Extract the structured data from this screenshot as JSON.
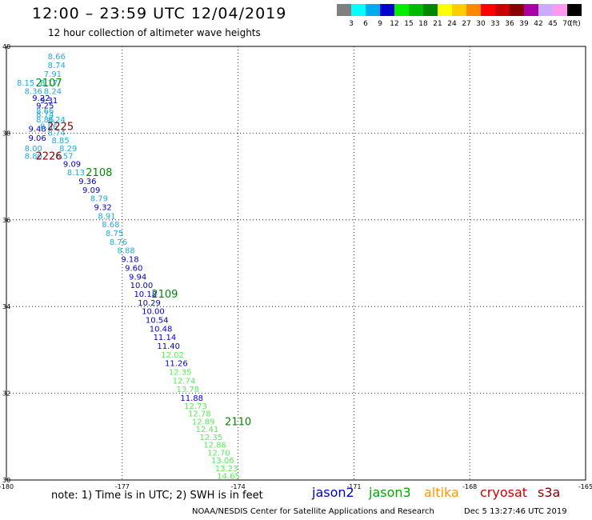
{
  "header": {
    "title": "12:00 – 23:59 UTC 12/04/2019",
    "subtitle": "12 hour collection of altimeter wave heights"
  },
  "colorbar": {
    "unit": "(ft)",
    "ticks": [
      "3",
      "6",
      "9",
      "12",
      "15",
      "18",
      "21",
      "24",
      "27",
      "30",
      "33",
      "36",
      "39",
      "42",
      "45",
      "70"
    ],
    "colors": [
      "#808080",
      "#00ffff",
      "#00aaee",
      "#0000cc",
      "#00ee00",
      "#00bb00",
      "#008800",
      "#ffff00",
      "#ffcc00",
      "#ff8800",
      "#ff0000",
      "#cc0000",
      "#880000",
      "#aa00aa",
      "#ccaaff",
      "#ff99ee",
      "#000000"
    ]
  },
  "footer": {
    "note": "note:  1) Time is in UTC;  2) SWH is in feet",
    "satellites": [
      {
        "name": "jason2",
        "color": "#0000cc"
      },
      {
        "name": "jason3",
        "color": "#00aa00"
      },
      {
        "name": "altika",
        "color": "#ff9900"
      },
      {
        "name": "cryosat",
        "color": "#cc0000"
      },
      {
        "name": "s3a",
        "color": "#880000"
      }
    ],
    "credit": "NOAA/NESDIS Center for Satellite Applications and Research",
    "timestamp": "Dec  5 13:27:46 UTC 2019"
  },
  "chart_data": {
    "type": "scatter",
    "xlim": [
      -180,
      -165
    ],
    "ylim": [
      30,
      40
    ],
    "grid": true,
    "x_ticks": [
      "-180",
      "-177",
      "-174",
      "-171",
      "-168",
      "-165"
    ],
    "y_ticks": [
      "30",
      "32",
      "34",
      "36",
      "38",
      "40"
    ],
    "colors": {
      "c9": "#22aadd",
      "c12": "#0000cc",
      "c15": "#55ee55"
    },
    "points": [
      {
        "lon": -178.7,
        "lat": 39.78,
        "v": "8.66",
        "c": "c9"
      },
      {
        "lon": -178.7,
        "lat": 39.58,
        "v": "8.74",
        "c": "c9"
      },
      {
        "lon": -178.8,
        "lat": 39.37,
        "v": "7.91",
        "c": "c9"
      },
      {
        "lon": -179.5,
        "lat": 39.17,
        "v": "8.15",
        "c": "c9"
      },
      {
        "lon": -178.9,
        "lat": 39.17,
        "v": "8.17",
        "c": "c9"
      },
      {
        "lon": -179.3,
        "lat": 38.98,
        "v": "8.36",
        "c": "c9"
      },
      {
        "lon": -178.8,
        "lat": 38.98,
        "v": "8.24",
        "c": "c9"
      },
      {
        "lon": -179.1,
        "lat": 38.82,
        "v": "9.22",
        "c": "c12"
      },
      {
        "lon": -178.9,
        "lat": 38.76,
        "v": "9.31",
        "c": "c12"
      },
      {
        "lon": -179.0,
        "lat": 38.64,
        "v": "9.25",
        "c": "c12"
      },
      {
        "lon": -179.0,
        "lat": 38.52,
        "v": "8.66",
        "c": "c9"
      },
      {
        "lon": -179.0,
        "lat": 38.44,
        "v": "8.74",
        "c": "c9"
      },
      {
        "lon": -179.0,
        "lat": 38.32,
        "v": "8.86",
        "c": "c9"
      },
      {
        "lon": -178.7,
        "lat": 38.32,
        "v": "8.24",
        "c": "c9"
      },
      {
        "lon": -179.2,
        "lat": 38.11,
        "v": "9.48",
        "c": "c12"
      },
      {
        "lon": -178.9,
        "lat": 38.16,
        "v": "8.86",
        "c": "c9"
      },
      {
        "lon": -178.7,
        "lat": 38.02,
        "v": "8.74",
        "c": "c9"
      },
      {
        "lon": -179.2,
        "lat": 37.9,
        "v": "9.06",
        "c": "c12"
      },
      {
        "lon": -178.6,
        "lat": 37.84,
        "v": "8.85",
        "c": "c9"
      },
      {
        "lon": -179.3,
        "lat": 37.66,
        "v": "8.00",
        "c": "c9"
      },
      {
        "lon": -178.4,
        "lat": 37.66,
        "v": "8.29",
        "c": "c9"
      },
      {
        "lon": -179.3,
        "lat": 37.48,
        "v": "8.80",
        "c": "c9"
      },
      {
        "lon": -178.5,
        "lat": 37.48,
        "v": "8.57",
        "c": "c9"
      },
      {
        "lon": -178.3,
        "lat": 37.3,
        "v": "9.09",
        "c": "c12"
      },
      {
        "lon": -178.2,
        "lat": 37.1,
        "v": "8.13",
        "c": "c9"
      },
      {
        "lon": -177.9,
        "lat": 36.9,
        "v": "9.36",
        "c": "c12"
      },
      {
        "lon": -177.8,
        "lat": 36.7,
        "v": "9.09",
        "c": "c12"
      },
      {
        "lon": -177.6,
        "lat": 36.5,
        "v": "8.79",
        "c": "c9"
      },
      {
        "lon": -177.5,
        "lat": 36.3,
        "v": "9.32",
        "c": "c12"
      },
      {
        "lon": -177.4,
        "lat": 36.1,
        "v": "8.91",
        "c": "c9"
      },
      {
        "lon": -177.3,
        "lat": 35.9,
        "v": "8.68",
        "c": "c9"
      },
      {
        "lon": -177.2,
        "lat": 35.7,
        "v": "8.75",
        "c": "c9"
      },
      {
        "lon": -177.1,
        "lat": 35.5,
        "v": "8.76",
        "c": "c9"
      },
      {
        "lon": -176.9,
        "lat": 35.3,
        "v": "8.88",
        "c": "c9"
      },
      {
        "lon": -176.8,
        "lat": 35.1,
        "v": "9.18",
        "c": "c12"
      },
      {
        "lon": -176.7,
        "lat": 34.9,
        "v": "9.60",
        "c": "c12"
      },
      {
        "lon": -176.6,
        "lat": 34.7,
        "v": "9.94",
        "c": "c12"
      },
      {
        "lon": -176.5,
        "lat": 34.5,
        "v": "10.00",
        "c": "c12"
      },
      {
        "lon": -176.4,
        "lat": 34.3,
        "v": "10.18",
        "c": "c12"
      },
      {
        "lon": -176.3,
        "lat": 34.1,
        "v": "10.29",
        "c": "c12"
      },
      {
        "lon": -176.2,
        "lat": 33.9,
        "v": "10.00",
        "c": "c12"
      },
      {
        "lon": -176.1,
        "lat": 33.7,
        "v": "10.54",
        "c": "c12"
      },
      {
        "lon": -176.0,
        "lat": 33.5,
        "v": "10.48",
        "c": "c12"
      },
      {
        "lon": -175.9,
        "lat": 33.3,
        "v": "11.14",
        "c": "c12"
      },
      {
        "lon": -175.8,
        "lat": 33.1,
        "v": "11.40",
        "c": "c12"
      },
      {
        "lon": -175.7,
        "lat": 32.9,
        "v": "12.02",
        "c": "c15"
      },
      {
        "lon": -175.6,
        "lat": 32.7,
        "v": "11.26",
        "c": "c12"
      },
      {
        "lon": -175.5,
        "lat": 32.5,
        "v": "12.35",
        "c": "c15"
      },
      {
        "lon": -175.4,
        "lat": 32.3,
        "v": "12.74",
        "c": "c15"
      },
      {
        "lon": -175.3,
        "lat": 32.1,
        "v": "13.78",
        "c": "c15"
      },
      {
        "lon": -175.2,
        "lat": 31.9,
        "v": "11.88",
        "c": "c12"
      },
      {
        "lon": -175.1,
        "lat": 31.72,
        "v": "12.73",
        "c": "c15"
      },
      {
        "lon": -175.0,
        "lat": 31.54,
        "v": "12.78",
        "c": "c15"
      },
      {
        "lon": -174.9,
        "lat": 31.36,
        "v": "12.89",
        "c": "c15"
      },
      {
        "lon": -174.8,
        "lat": 31.18,
        "v": "12.41",
        "c": "c15"
      },
      {
        "lon": -174.7,
        "lat": 31.0,
        "v": "12.35",
        "c": "c15"
      },
      {
        "lon": -174.6,
        "lat": 30.82,
        "v": "12.86",
        "c": "c15"
      },
      {
        "lon": -174.5,
        "lat": 30.64,
        "v": "12.70",
        "c": "c15"
      },
      {
        "lon": -174.4,
        "lat": 30.46,
        "v": "13.06",
        "c": "c15"
      },
      {
        "lon": -174.3,
        "lat": 30.28,
        "v": "13.23",
        "c": "c15"
      },
      {
        "lon": -174.25,
        "lat": 30.1,
        "v": "14.65",
        "c": "c15"
      }
    ],
    "time_labels": [
      {
        "lon": -178.9,
        "lat": 39.17,
        "v": "2107",
        "color": "#008800"
      },
      {
        "lon": -178.6,
        "lat": 38.16,
        "v": "2225",
        "color": "#880000"
      },
      {
        "lon": -178.9,
        "lat": 37.48,
        "v": "2226",
        "color": "#880000"
      },
      {
        "lon": -177.6,
        "lat": 37.1,
        "v": "2108",
        "color": "#008800"
      },
      {
        "lon": -175.9,
        "lat": 34.3,
        "v": "2109",
        "color": "#008800"
      },
      {
        "lon": -174.0,
        "lat": 31.36,
        "v": "2110",
        "color": "#008800"
      }
    ]
  }
}
